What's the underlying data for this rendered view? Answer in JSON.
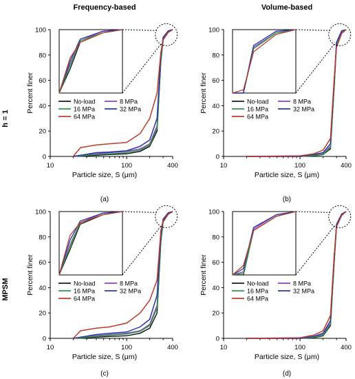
{
  "figure": {
    "col_titles": [
      "Frequency-based",
      "Volume-based"
    ],
    "row_titles": [
      "h = 1",
      "MPSM"
    ],
    "xlabel": "Particle size, S (μm)",
    "ylabel": "Percent finer",
    "legend": [
      "No-load",
      "8 MPa",
      "16 MPa",
      "32 MPa",
      "64 MPa"
    ],
    "colors": {
      "No-load": "#1a1a1a",
      "8 MPa": "#8e3fbf",
      "16 MPa": "#2f9a4a",
      "32 MPa": "#2634a8",
      "64 MPa": "#c0392b"
    }
  },
  "chart_data": [
    {
      "type": "line",
      "panel_label": "(a)",
      "xscale": "log",
      "xlim": [
        10,
        400
      ],
      "ylim": [
        0,
        100
      ],
      "xticks": [
        10,
        100,
        400
      ],
      "yticks": [
        0,
        20,
        40,
        60,
        80,
        100
      ],
      "xlabel": "Particle size, S (μm)",
      "ylabel": "Percent finer",
      "series": [
        {
          "name": "No-load",
          "x": [
            20,
            40,
            60,
            100,
            150,
            200,
            250,
            280,
            300,
            350,
            400
          ],
          "y": [
            0,
            1,
            1.5,
            2,
            4,
            8,
            20,
            75,
            92,
            98,
            100
          ]
        },
        {
          "name": "8 MPa",
          "x": [
            20,
            40,
            60,
            100,
            150,
            200,
            250,
            280,
            300,
            350,
            400
          ],
          "y": [
            0,
            2,
            3,
            4,
            6,
            10,
            24,
            78,
            93,
            99,
            100
          ]
        },
        {
          "name": "16 MPa",
          "x": [
            20,
            40,
            60,
            100,
            150,
            200,
            250,
            280,
            300,
            350,
            400
          ],
          "y": [
            0,
            1.5,
            2,
            3,
            5,
            9,
            22,
            77,
            93,
            98,
            100
          ]
        },
        {
          "name": "32 MPa",
          "x": [
            20,
            40,
            60,
            100,
            150,
            200,
            250,
            280,
            300,
            350,
            400
          ],
          "y": [
            0,
            3,
            3.5,
            4.5,
            8,
            13,
            30,
            80,
            94,
            99,
            100
          ]
        },
        {
          "name": "64 MPa",
          "x": [
            20,
            25,
            40,
            60,
            100,
            150,
            200,
            250,
            280,
            300,
            350,
            400
          ],
          "y": [
            0,
            7,
            9,
            10,
            11,
            18,
            30,
            50,
            82,
            92,
            98,
            100
          ]
        }
      ]
    },
    {
      "type": "line",
      "panel_label": "(b)",
      "xscale": "log",
      "xlim": [
        10,
        400
      ],
      "ylim": [
        0,
        100
      ],
      "xticks": [
        10,
        100,
        400
      ],
      "yticks": [
        0,
        20,
        40,
        60,
        80,
        100
      ],
      "xlabel": "Particle size, S (μm)",
      "ylabel": "Percent finer",
      "series": [
        {
          "name": "No-load",
          "x": [
            20,
            100,
            150,
            200,
            250,
            280,
            300,
            350,
            400
          ],
          "y": [
            0,
            0,
            0.5,
            1.5,
            6,
            55,
            88,
            98,
            100
          ]
        },
        {
          "name": "8 MPa",
          "x": [
            20,
            100,
            150,
            200,
            250,
            280,
            300,
            350,
            400
          ],
          "y": [
            0,
            0,
            1,
            2,
            8,
            58,
            89,
            98,
            100
          ]
        },
        {
          "name": "16 MPa",
          "x": [
            20,
            100,
            150,
            200,
            250,
            280,
            300,
            350,
            400
          ],
          "y": [
            0,
            0,
            0.7,
            1.8,
            7,
            56,
            88,
            98,
            100
          ]
        },
        {
          "name": "32 MPa",
          "x": [
            20,
            100,
            150,
            200,
            250,
            280,
            300,
            350,
            400
          ],
          "y": [
            0,
            0,
            1.5,
            3,
            10,
            60,
            90,
            99,
            100
          ]
        },
        {
          "name": "64 MPa",
          "x": [
            20,
            100,
            150,
            200,
            250,
            280,
            300,
            350,
            400
          ],
          "y": [
            0,
            0.5,
            2,
            5,
            14,
            62,
            86,
            97,
            100
          ]
        }
      ]
    },
    {
      "type": "line",
      "panel_label": "(c)",
      "xscale": "log",
      "xlim": [
        10,
        400
      ],
      "ylim": [
        0,
        100
      ],
      "xticks": [
        10,
        100,
        400
      ],
      "yticks": [
        0,
        20,
        40,
        60,
        80,
        100
      ],
      "xlabel": "Particle size, S (μm)",
      "ylabel": "Percent finer",
      "series": [
        {
          "name": "No-load",
          "x": [
            20,
            40,
            60,
            100,
            150,
            200,
            250,
            280,
            300,
            350,
            400
          ],
          "y": [
            0,
            1,
            1.5,
            2,
            4,
            8,
            20,
            76,
            92,
            98,
            100
          ]
        },
        {
          "name": "8 MPa",
          "x": [
            20,
            40,
            60,
            100,
            150,
            200,
            250,
            280,
            300,
            350,
            400
          ],
          "y": [
            0,
            2,
            3,
            4,
            6,
            11,
            26,
            79,
            93,
            99,
            100
          ]
        },
        {
          "name": "16 MPa",
          "x": [
            20,
            40,
            60,
            100,
            150,
            200,
            250,
            280,
            300,
            350,
            400
          ],
          "y": [
            0,
            1.5,
            2.5,
            3.5,
            5.5,
            10,
            24,
            78,
            93,
            98,
            100
          ]
        },
        {
          "name": "32 MPa",
          "x": [
            20,
            40,
            60,
            100,
            150,
            200,
            250,
            280,
            300,
            350,
            400
          ],
          "y": [
            0,
            3,
            4,
            5,
            9,
            15,
            34,
            82,
            94,
            99,
            100
          ]
        },
        {
          "name": "64 MPa",
          "x": [
            20,
            25,
            40,
            60,
            100,
            150,
            200,
            250,
            280,
            300,
            350,
            400
          ],
          "y": [
            0,
            6,
            8,
            9,
            12,
            20,
            30,
            46,
            85,
            93,
            98,
            100
          ]
        }
      ]
    },
    {
      "type": "line",
      "panel_label": "(d)",
      "xscale": "log",
      "xlim": [
        10,
        400
      ],
      "ylim": [
        0,
        100
      ],
      "xticks": [
        10,
        100,
        400
      ],
      "yticks": [
        0,
        20,
        40,
        60,
        80,
        100
      ],
      "xlabel": "Particle size, S (μm)",
      "ylabel": "Percent finer",
      "series": [
        {
          "name": "No-load",
          "x": [
            20,
            100,
            150,
            200,
            250,
            280,
            300,
            350,
            400
          ],
          "y": [
            0,
            0,
            0.5,
            2,
            10,
            60,
            88,
            97,
            100
          ]
        },
        {
          "name": "8 MPa",
          "x": [
            20,
            100,
            150,
            200,
            250,
            280,
            300,
            350,
            400
          ],
          "y": [
            0,
            0,
            1,
            3,
            12,
            62,
            89,
            98,
            100
          ]
        },
        {
          "name": "16 MPa",
          "x": [
            20,
            100,
            150,
            200,
            250,
            280,
            300,
            350,
            400
          ],
          "y": [
            0,
            0,
            0.8,
            2.5,
            11,
            61,
            88,
            97,
            100
          ]
        },
        {
          "name": "32 MPa",
          "x": [
            20,
            100,
            150,
            200,
            250,
            280,
            300,
            350,
            400
          ],
          "y": [
            0,
            0,
            1.5,
            4,
            14,
            64,
            90,
            98,
            100
          ]
        },
        {
          "name": "64 MPa",
          "x": [
            20,
            100,
            150,
            200,
            250,
            280,
            300,
            350,
            400
          ],
          "y": [
            0,
            0.5,
            2.5,
            6,
            18,
            66,
            88,
            97,
            100
          ]
        }
      ]
    }
  ]
}
